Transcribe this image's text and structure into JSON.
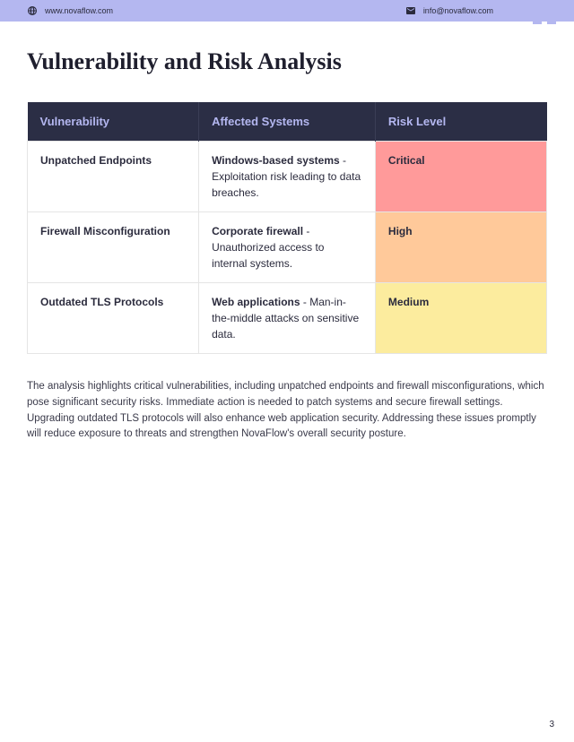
{
  "header": {
    "website": "www.novaflow.com",
    "email": "info@novaflow.com",
    "bar_color": "#b4b7f0",
    "text_color": "#2b2b3d"
  },
  "title": "Vulnerability and Risk Analysis",
  "table": {
    "header_bg": "#2b2e45",
    "header_fg": "#b4b7f0",
    "columns": [
      "Vulnerability",
      "Affected Systems",
      "Risk Level"
    ],
    "column_widths": [
      "33%",
      "34%",
      "33%"
    ],
    "rows": [
      {
        "vulnerability": "Unpatched Endpoints",
        "affected_bold": "Windows-based systems",
        "affected_rest": " - Exploitation risk leading to data breaches.",
        "risk": "Critical",
        "risk_bg": "#ff9a9a"
      },
      {
        "vulnerability": "Firewall Misconfiguration",
        "affected_bold": "Corporate firewall",
        "affected_rest": " - Unauthorized access to internal systems.",
        "risk": "High",
        "risk_bg": "#ffc99a"
      },
      {
        "vulnerability": "Outdated TLS Protocols",
        "affected_bold": "Web applications",
        "affected_rest": " - Man-in-the-middle attacks on sensitive data.",
        "risk": "Medium",
        "risk_bg": "#fcec9e"
      }
    ]
  },
  "summary": "The analysis highlights critical vulnerabilities, including unpatched endpoints and firewall misconfigurations, which pose significant security risks. Immediate action is needed to patch systems and secure firewall settings. Upgrading outdated TLS protocols will also enhance web application security. Addressing these issues promptly will reduce exposure to threats and strengthen NovaFlow's overall security posture.",
  "page_number": "3"
}
